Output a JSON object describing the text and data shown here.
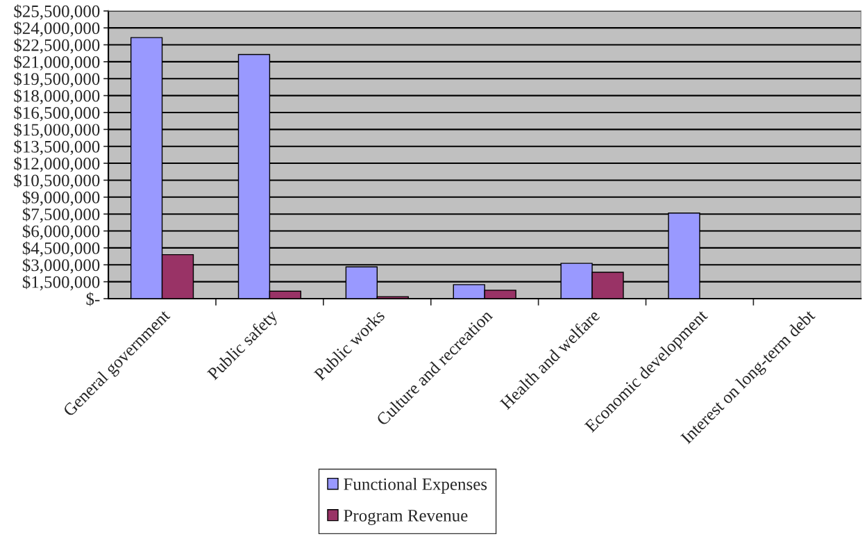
{
  "chart_data": {
    "type": "bar",
    "categories": [
      "General government",
      "Public safety",
      "Public works",
      "Culture and recreation",
      "Health and welfare",
      "Economic development",
      "Interest on long-term debt"
    ],
    "series": [
      {
        "name": "Functional Expenses",
        "color": "#9999ff",
        "values": [
          23140000,
          21640000,
          2820000,
          1240000,
          3130000,
          7590000,
          0
        ]
      },
      {
        "name": "Program Revenue",
        "color": "#993366",
        "values": [
          3900000,
          660000,
          180000,
          750000,
          2340000,
          0,
          0
        ]
      }
    ],
    "ylim": [
      0,
      25500000
    ],
    "yticks": [
      {
        "value": 0,
        "label": "$-"
      },
      {
        "value": 1500000,
        "label": "$1,500,000"
      },
      {
        "value": 3000000,
        "label": "$3,000,000"
      },
      {
        "value": 4500000,
        "label": "$4,500,000"
      },
      {
        "value": 6000000,
        "label": "$6,000,000"
      },
      {
        "value": 7500000,
        "label": "$7,500,000"
      },
      {
        "value": 9000000,
        "label": "$9,000,000"
      },
      {
        "value": 10500000,
        "label": "$10,500,000"
      },
      {
        "value": 12000000,
        "label": "$12,000,000"
      },
      {
        "value": 13500000,
        "label": "$13,500,000"
      },
      {
        "value": 15000000,
        "label": "$15,000,000"
      },
      {
        "value": 16500000,
        "label": "$16,500,000"
      },
      {
        "value": 18000000,
        "label": "$18,000,000"
      },
      {
        "value": 19500000,
        "label": "$19,500,000"
      },
      {
        "value": 21000000,
        "label": "$21,000,000"
      },
      {
        "value": 22500000,
        "label": "$22,500,000"
      },
      {
        "value": 24000000,
        "label": "$24,000,000"
      },
      {
        "value": 25500000,
        "label": "$25,500,000"
      }
    ],
    "grid": "y",
    "legend": "bottom"
  }
}
